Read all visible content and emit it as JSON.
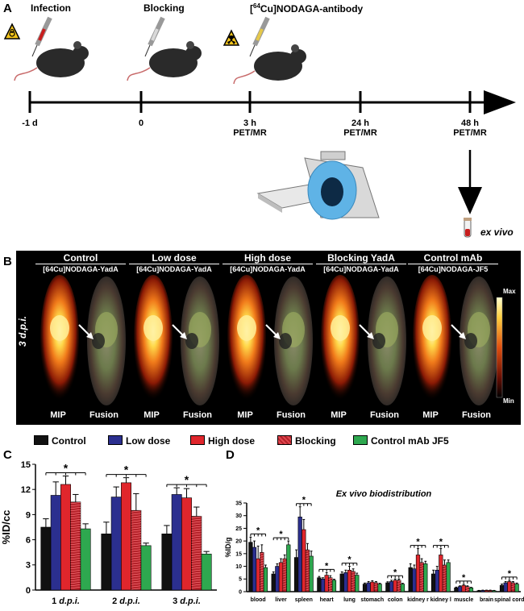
{
  "panelA": {
    "letter": "A",
    "labels": {
      "infection": "Infection",
      "blocking": "Blocking",
      "antibody_pre": "[",
      "antibody_sup": "64",
      "antibody_post": "Cu]NODAGA-antibody"
    },
    "ticks": [
      {
        "time": "-1 d",
        "sub": ""
      },
      {
        "time": "0",
        "sub": ""
      },
      {
        "time": "3 h",
        "sub": "PET/MR"
      },
      {
        "time": "24 h",
        "sub": "PET/MR"
      },
      {
        "time": "48 h",
        "sub": "PET/MR"
      }
    ],
    "exvivo": "ex vivo"
  },
  "panelB": {
    "letter": "B",
    "row_label": "3 d.p.i.",
    "groups": [
      {
        "title": "Control",
        "tracer": "[64Cu]NODAGA-YadA"
      },
      {
        "title": "Low dose",
        "tracer": "[64Cu]NODAGA-YadA"
      },
      {
        "title": "High dose",
        "tracer": "[64Cu]NODAGA-YadA"
      },
      {
        "title": "Blocking YadA",
        "tracer": "[64Cu]NODAGA-YadA"
      },
      {
        "title": "Control mAb",
        "tracer": "[64Cu]NODAGA-JF5"
      }
    ],
    "footers": [
      "MIP",
      "Fusion",
      "MIP",
      "Fusion",
      "MIP",
      "Fusion",
      "MIP",
      "Fusion",
      "MIP",
      "Fusion"
    ],
    "scale": {
      "max": "Max",
      "min": "Min"
    }
  },
  "legend": [
    {
      "name": "Control",
      "color": "#111111"
    },
    {
      "name": "Low dose",
      "color": "#2b2f8f"
    },
    {
      "name": "High dose",
      "color": "#e0262c"
    },
    {
      "name": "Blocking",
      "color": "#b5222a"
    },
    {
      "name": "Control mAb JF5",
      "color": "#2ea84f"
    }
  ],
  "chart_data": [
    {
      "type": "bar",
      "panel": "C",
      "ylabel": "%ID/cc",
      "ylim": [
        0,
        15
      ],
      "yticks": [
        0,
        3,
        6,
        9,
        12,
        15
      ],
      "categories": [
        "1 d.p.i.",
        "2 d.p.i.",
        "3 d.p.i."
      ],
      "series": [
        {
          "name": "Control",
          "values": [
            7.5,
            6.7,
            6.7
          ],
          "err": [
            1.0,
            1.4,
            1.0
          ]
        },
        {
          "name": "Low dose",
          "values": [
            11.3,
            11.1,
            11.4
          ],
          "err": [
            1.6,
            1.2,
            0.8
          ]
        },
        {
          "name": "High dose",
          "values": [
            12.6,
            12.8,
            11.0
          ],
          "err": [
            1.0,
            0.6,
            1.1
          ]
        },
        {
          "name": "Blocking",
          "values": [
            10.5,
            9.5,
            8.8
          ],
          "err": [
            0.9,
            2.0,
            1.1
          ]
        },
        {
          "name": "Control mAb JF5",
          "values": [
            7.3,
            5.3,
            4.3
          ],
          "err": [
            0.6,
            0.3,
            0.3
          ]
        }
      ],
      "significance": [
        "*",
        "*",
        "*"
      ]
    },
    {
      "type": "bar",
      "panel": "D",
      "title": "Ex vivo biodistribution",
      "ylabel": "%ID/g",
      "ylim": [
        0,
        35
      ],
      "yticks": [
        0,
        5,
        10,
        15,
        20,
        25,
        30,
        35
      ],
      "categories": [
        "blood",
        "liver",
        "spleen",
        "heart",
        "lung",
        "stomach",
        "colon",
        "kidney r",
        "kidney l",
        "muscle",
        "brain",
        "spinal cord"
      ],
      "series": [
        {
          "name": "Control",
          "values": [
            19.5,
            7.0,
            13.5,
            5.5,
            7.0,
            3.0,
            3.5,
            9.5,
            7.0,
            1.5,
            0.4,
            2.5
          ],
          "err": [
            2.0,
            0.8,
            3.0,
            0.5,
            0.8,
            0.4,
            0.4,
            1.5,
            1.5,
            0.3,
            0.1,
            0.5
          ]
        },
        {
          "name": "Low dose",
          "values": [
            17.5,
            10.0,
            29.5,
            5.0,
            7.5,
            3.5,
            4.0,
            9.0,
            8.5,
            2.0,
            0.5,
            3.5
          ],
          "err": [
            2.5,
            1.0,
            4.0,
            0.5,
            1.0,
            0.5,
            0.5,
            1.5,
            1.5,
            0.3,
            0.1,
            0.5
          ]
        },
        {
          "name": "High dose",
          "values": [
            13.0,
            11.5,
            24.5,
            6.5,
            8.5,
            3.8,
            4.5,
            14.5,
            14.5,
            2.5,
            0.5,
            4.0
          ],
          "err": [
            5.0,
            1.5,
            4.0,
            1.0,
            1.5,
            0.5,
            0.5,
            2.5,
            2.5,
            0.4,
            0.1,
            0.5
          ]
        },
        {
          "name": "Blocking",
          "values": [
            15.5,
            13.0,
            16.5,
            5.5,
            8.0,
            3.5,
            4.5,
            11.5,
            10.5,
            2.0,
            0.5,
            3.5
          ],
          "err": [
            3.0,
            1.5,
            2.5,
            0.8,
            1.0,
            0.5,
            0.5,
            1.5,
            2.0,
            0.3,
            0.1,
            0.5
          ]
        },
        {
          "name": "Control mAb JF5",
          "values": [
            9.5,
            18.5,
            14.0,
            4.5,
            6.5,
            3.0,
            3.0,
            11.0,
            11.5,
            1.5,
            0.4,
            3.0
          ],
          "err": [
            1.0,
            1.5,
            2.0,
            0.4,
            0.8,
            0.3,
            0.3,
            1.0,
            1.0,
            0.2,
            0.1,
            0.4
          ]
        }
      ],
      "significance": [
        "*",
        "*",
        "*",
        "*",
        "*",
        "",
        "*",
        "*",
        "*",
        "*",
        "",
        "*"
      ]
    }
  ]
}
